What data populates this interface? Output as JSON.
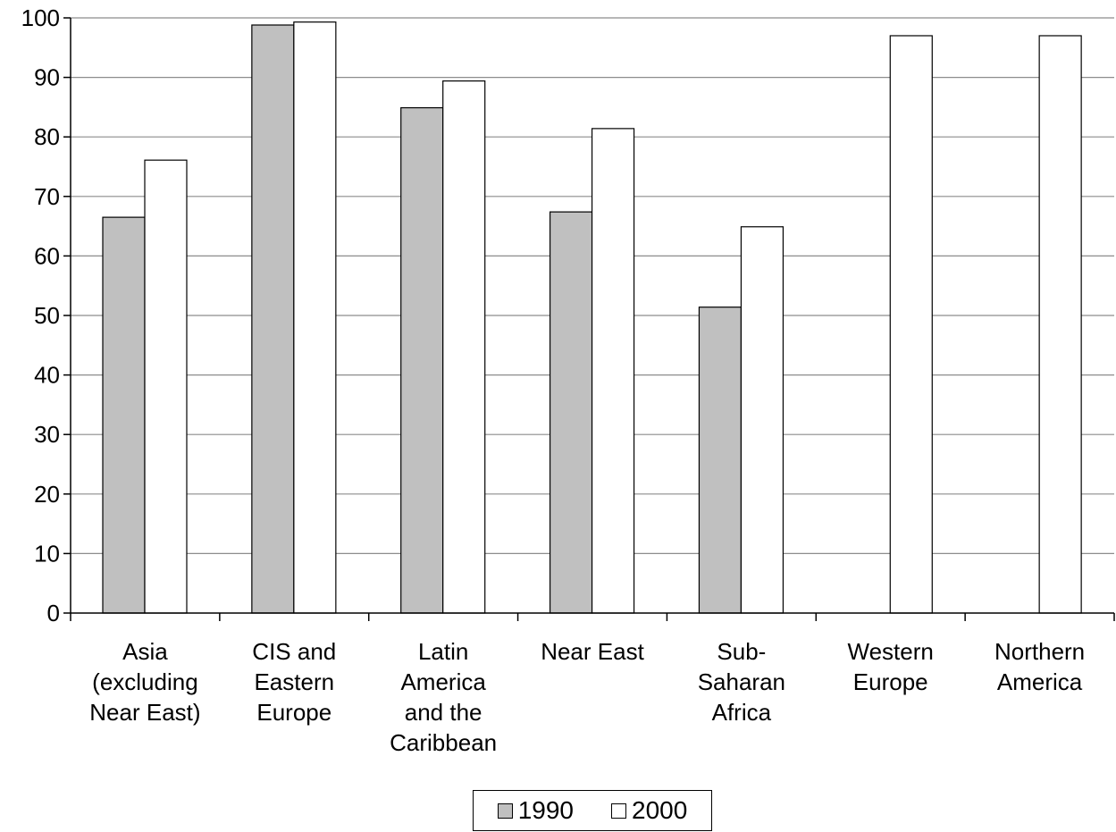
{
  "chart_data": {
    "type": "bar",
    "categories": [
      "Asia (excluding Near East)",
      "CIS and Eastern Europe",
      "Latin America and the Caribbean",
      "Near East",
      "Sub-Saharan Africa",
      "Western Europe",
      "Northern America"
    ],
    "category_label_lines": [
      [
        "Asia",
        "(excluding",
        "Near East)"
      ],
      [
        "CIS and",
        "Eastern",
        "Europe"
      ],
      [
        "Latin",
        "America",
        "and the",
        "Caribbean"
      ],
      [
        "Near East"
      ],
      [
        "Sub-",
        "Saharan",
        "Africa"
      ],
      [
        "Western",
        "Europe"
      ],
      [
        "Northern",
        "America"
      ]
    ],
    "series": [
      {
        "name": "1990",
        "color": "#c0c0c0",
        "values": [
          66.5,
          98.8,
          84.9,
          67.4,
          51.4,
          null,
          null
        ]
      },
      {
        "name": "2000",
        "color": "#ffffff",
        "values": [
          76.1,
          99.3,
          89.4,
          81.4,
          64.9,
          97.0,
          97.0
        ]
      }
    ],
    "ylim": [
      0,
      100
    ],
    "yticks": [
      0,
      10,
      20,
      30,
      40,
      50,
      60,
      70,
      80,
      90,
      100
    ],
    "grid": true,
    "legend_position": "bottom-center",
    "title": "",
    "xlabel": "",
    "ylabel": ""
  }
}
